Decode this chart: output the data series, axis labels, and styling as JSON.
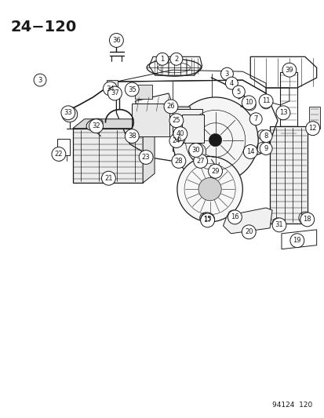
{
  "title": "24−120",
  "footer": "94124  120",
  "bg_color": "#ffffff",
  "fg_color": "#1a1a1a",
  "fig_w": 4.14,
  "fig_h": 5.33,
  "dpi": 100
}
